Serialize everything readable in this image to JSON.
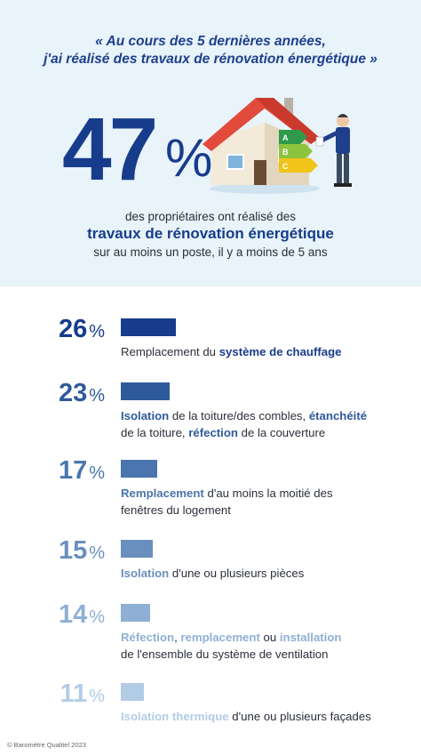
{
  "header": {
    "quote_line1": "« Au cours des 5 dernières années,",
    "quote_line2": "j'ai réalisé des travaux de rénovation énergétique »",
    "big_value": "47",
    "big_unit": "%",
    "sub_line1": "des propriétaires ont réalisé des",
    "sub_line2": "travaux de rénovation énergétique",
    "sub_line3": "sur au moins un poste, il y a moins de 5 ans",
    "house_labels": [
      "A",
      "B",
      "C"
    ]
  },
  "chart_data": {
    "type": "bar",
    "unit": "%",
    "values": [
      26,
      23,
      17,
      15,
      14,
      11
    ],
    "colors": [
      "#173c8c",
      "#2e5a9c",
      "#4a75ae",
      "#6a8fbe",
      "#8fb0d4",
      "#b3cce6"
    ],
    "categories": [
      [
        {
          "t": "Remplacement du ",
          "b": false
        },
        {
          "t": "système de chauffage",
          "b": true
        }
      ],
      [
        {
          "t": "Isolation",
          "b": true
        },
        {
          "t": " de la toiture/des combles, ",
          "b": false
        },
        {
          "t": "étanchéité",
          "b": true
        },
        {
          "br": true
        },
        {
          "t": "de la toiture, ",
          "b": false
        },
        {
          "t": "réfection",
          "b": true
        },
        {
          "t": " de la couverture",
          "b": false
        }
      ],
      [
        {
          "t": "Remplacement",
          "b": true
        },
        {
          "t": " d'au moins la moitié des",
          "b": false
        },
        {
          "br": true
        },
        {
          "t": "fenêtres du logement",
          "b": false
        }
      ],
      [
        {
          "t": "Isolation",
          "b": true
        },
        {
          "t": " d'une ou plusieurs pièces",
          "b": false
        }
      ],
      [
        {
          "t": "Réfection",
          "b": true
        },
        {
          "t": ", ",
          "b": false
        },
        {
          "t": "remplacement",
          "b": true
        },
        {
          "t": " ou ",
          "b": false
        },
        {
          "t": "installation",
          "b": true
        },
        {
          "br": true
        },
        {
          "t": "de l'ensemble du système de ventilation",
          "b": false
        }
      ],
      [
        {
          "t": "Isolation thermique",
          "b": true
        },
        {
          "t": " d'une ou plusieurs façades",
          "b": false
        }
      ]
    ]
  },
  "footer": "© Baromètre Qualitel 2023"
}
